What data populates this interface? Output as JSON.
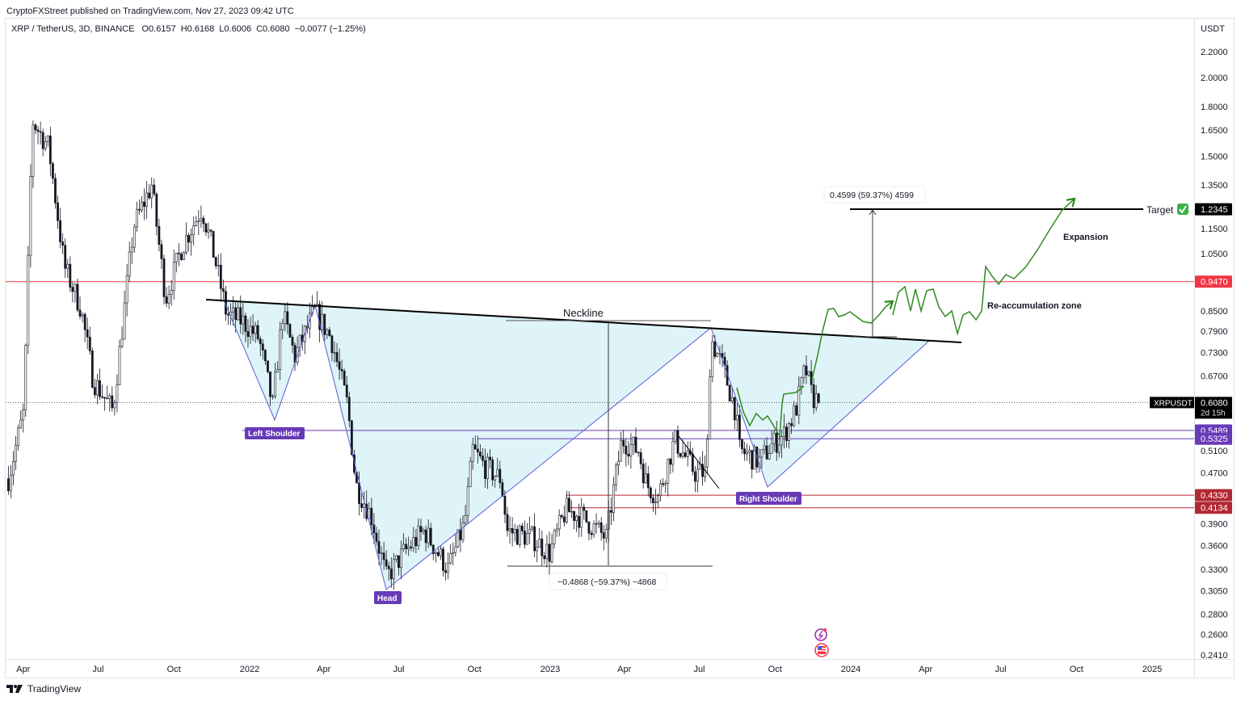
{
  "header": {
    "published": "CryptoFXStreet published on TradingView.com, Nov 27, 2023 09:42 UTC",
    "symbol": "XRP / TetherUS, 3D, BINANCE",
    "open": "O0.6157",
    "high": "H0.6168",
    "low": "L0.6006",
    "close": "C0.6080",
    "change": "−0.0077 (−1.25%)"
  },
  "price_axis": {
    "currency": "USDT",
    "ticks": [
      "2.2000",
      "2.0000",
      "1.8000",
      "1.6500",
      "1.5000",
      "1.3500",
      "1.1500",
      "1.0500",
      "0.8500",
      "0.7900",
      "0.7300",
      "0.6700",
      "0.5100",
      "0.4700",
      "0.3900",
      "0.3600",
      "0.3300",
      "0.3050",
      "0.2800",
      "0.2600",
      "0.2410"
    ]
  },
  "time_axis": {
    "labels": [
      {
        "text": "Apr",
        "date": "2021-04-01"
      },
      {
        "text": "Jul",
        "date": "2021-07-01"
      },
      {
        "text": "Oct",
        "date": "2021-10-01"
      },
      {
        "text": "2022",
        "date": "2022-01-01"
      },
      {
        "text": "Apr",
        "date": "2022-04-01"
      },
      {
        "text": "Jul",
        "date": "2022-07-01"
      },
      {
        "text": "Oct",
        "date": "2022-10-01"
      },
      {
        "text": "2023",
        "date": "2023-01-01"
      },
      {
        "text": "Apr",
        "date": "2023-04-01"
      },
      {
        "text": "Jul",
        "date": "2023-07-01"
      },
      {
        "text": "Oct",
        "date": "2023-10-01"
      },
      {
        "text": "2024",
        "date": "2024-01-01"
      },
      {
        "text": "Apr",
        "date": "2024-04-01"
      },
      {
        "text": "Jul",
        "date": "2024-07-01"
      },
      {
        "text": "Oct",
        "date": "2024-10-01"
      },
      {
        "text": "2025",
        "date": "2025-01-01"
      }
    ]
  },
  "chart_data": {
    "type": "candlestick",
    "title": "XRP / TetherUS, 3D, BINANCE",
    "y_scale": "log",
    "ylim": [
      0.241,
      2.2
    ],
    "xlim": [
      "2021-03-08",
      "2025-03-15"
    ],
    "grid": false,
    "candle_interval": "3D",
    "up_color": "#ffffff",
    "down_color": "#131722",
    "price_path": [
      [
        "2021-03-14",
        0.46
      ],
      [
        "2021-04-02",
        0.59
      ],
      [
        "2021-04-12",
        1.71
      ],
      [
        "2021-05-02",
        1.55
      ],
      [
        "2021-05-21",
        1.0
      ],
      [
        "2021-06-10",
        0.86
      ],
      [
        "2021-06-25",
        0.66
      ],
      [
        "2021-07-19",
        0.59
      ],
      [
        "2021-08-13",
        1.16
      ],
      [
        "2021-09-04",
        1.35
      ],
      [
        "2021-09-21",
        0.89
      ],
      [
        "2021-10-11",
        1.08
      ],
      [
        "2021-11-04",
        1.24
      ],
      [
        "2021-11-19",
        1.04
      ],
      [
        "2021-12-04",
        0.84
      ],
      [
        "2021-12-23",
        0.82
      ],
      [
        "2022-01-12",
        0.77
      ],
      [
        "2022-01-29",
        0.6
      ],
      [
        "2022-02-10",
        0.84
      ],
      [
        "2022-02-25",
        0.72
      ],
      [
        "2022-03-21",
        0.85
      ],
      [
        "2022-04-10",
        0.77
      ],
      [
        "2022-04-30",
        0.6
      ],
      [
        "2022-05-10",
        0.45
      ],
      [
        "2022-05-29",
        0.4
      ],
      [
        "2022-06-16",
        0.32
      ],
      [
        "2022-07-07",
        0.35
      ],
      [
        "2022-08-01",
        0.38
      ],
      [
        "2022-08-30",
        0.33
      ],
      [
        "2022-09-19",
        0.39
      ],
      [
        "2022-09-29",
        0.51
      ],
      [
        "2022-10-14",
        0.48
      ],
      [
        "2022-11-02",
        0.46
      ],
      [
        "2022-11-10",
        0.38
      ],
      [
        "2022-12-11",
        0.37
      ],
      [
        "2022-12-31",
        0.35
      ],
      [
        "2023-01-20",
        0.41
      ],
      [
        "2023-02-08",
        0.4
      ],
      [
        "2023-03-10",
        0.37
      ],
      [
        "2023-03-20",
        0.45
      ],
      [
        "2023-03-29",
        0.53
      ],
      [
        "2023-04-18",
        0.51
      ],
      [
        "2023-04-28",
        0.45
      ],
      [
        "2023-05-12",
        0.43
      ],
      [
        "2023-06-01",
        0.53
      ],
      [
        "2023-06-26",
        0.47
      ],
      [
        "2023-07-10",
        0.47
      ],
      [
        "2023-07-15",
        0.77
      ],
      [
        "2023-07-30",
        0.69
      ],
      [
        "2023-08-14",
        0.59
      ],
      [
        "2023-08-19",
        0.51
      ],
      [
        "2023-09-12",
        0.49
      ],
      [
        "2023-09-27",
        0.52
      ],
      [
        "2023-10-12",
        0.54
      ],
      [
        "2023-10-26",
        0.59
      ],
      [
        "2023-11-07",
        0.69
      ],
      [
        "2023-11-15",
        0.62
      ],
      [
        "2023-11-25",
        0.608
      ]
    ],
    "last_price": {
      "symbol": "XRPUSDT",
      "value": "0.6080",
      "countdown": "2d 15h"
    },
    "levels": [
      {
        "price": 1.2345,
        "label": "1.2345",
        "color": "#000000",
        "from": "2024-01-08"
      },
      {
        "price": 0.947,
        "label": "0.9470",
        "color": "#f23645",
        "from": "2021-03-08"
      },
      {
        "price": 0.5489,
        "label": "0.5489",
        "color": "#673ab7",
        "from": "2021-12-23"
      },
      {
        "price": 0.5325,
        "label": "0.5325",
        "color": "#673ab7",
        "from": "2022-10-05"
      },
      {
        "price": 0.433,
        "label": "0.4330",
        "color": "#b22833",
        "from": "2023-01-20"
      },
      {
        "price": 0.4134,
        "label": "0.4134",
        "color": "#b22833",
        "from": "2023-01-20"
      }
    ]
  },
  "annotations": {
    "neckline": "Neckline",
    "left_shoulder": "Left Shoulder",
    "head": "Head",
    "right_shoulder": "Right Shoulder",
    "reaccumulation": "Re-accumulation zone",
    "expansion": "Expansion",
    "target": "Target",
    "target_icon": "green-check",
    "measure_up": "0.4599 (59.37%) 4599",
    "measure_down": "−0.4868 (−59.37%) −4868",
    "pattern_fill": "#dff4f8",
    "label_color": "#673ab7",
    "projection_color": "#2e8b1e"
  },
  "footer": {
    "brand": "TradingView"
  }
}
